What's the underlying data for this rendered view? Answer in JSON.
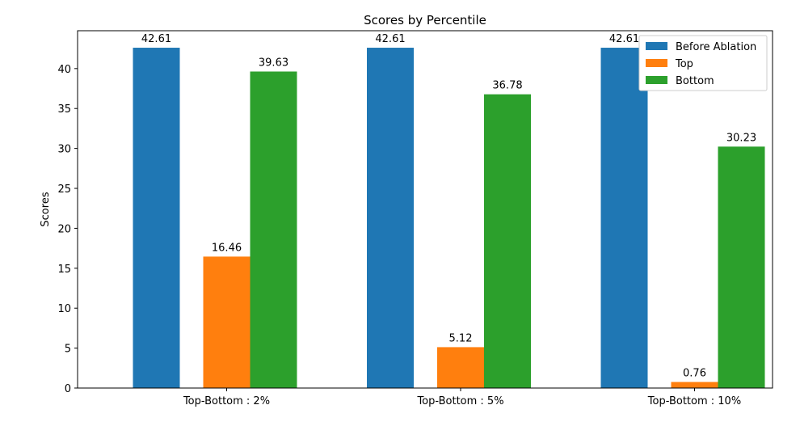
{
  "chart_data": {
    "type": "bar",
    "title": "Scores by Percentile",
    "xlabel": "",
    "ylabel": "Scores",
    "categories": [
      "Top-Bottom : 2%",
      "Top-Bottom : 5%",
      "Top-Bottom : 10%"
    ],
    "series": [
      {
        "name": "Before Ablation",
        "color": "#1f77b4",
        "values": [
          42.61,
          42.61,
          42.61
        ],
        "labels": [
          "42.61",
          "42.61",
          "42.61"
        ]
      },
      {
        "name": "Top",
        "color": "#ff7f0e",
        "values": [
          16.46,
          5.12,
          0.76
        ],
        "labels": [
          "16.46",
          "5.12",
          "0.76"
        ]
      },
      {
        "name": "Bottom",
        "color": "#2ca02c",
        "values": [
          39.63,
          36.78,
          30.23
        ],
        "labels": [
          "39.63",
          "36.78",
          "30.23"
        ]
      }
    ],
    "ylim": [
      0,
      44.74
    ],
    "yticks": [
      0,
      5,
      10,
      15,
      20,
      25,
      30,
      35,
      40
    ],
    "grid": false,
    "legend_position": "top-right"
  }
}
